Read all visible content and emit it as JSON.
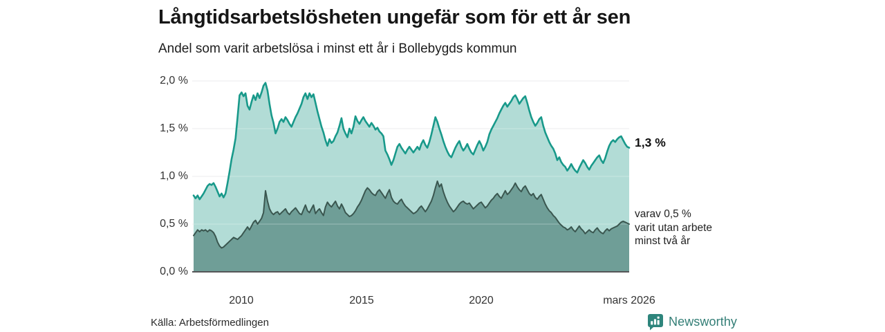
{
  "header": {
    "title": "Långtidsarbetslösheten ungefär som för ett år sen",
    "subtitle": "Andel som varit arbetslösa i minst ett år i Bollebygds kommun"
  },
  "chart_data": {
    "type": "area",
    "title": "Långtidsarbetslösheten ungefär som för ett år sen",
    "subtitle": "Andel som varit arbetslösa i minst ett år i Bollebygds kommun",
    "unit": "%",
    "grid": true,
    "ylim": [
      0,
      2.0
    ],
    "y_axis": {
      "tick_values": [
        0.0,
        0.5,
        1.0,
        1.5,
        2.0
      ],
      "tick_labels": [
        "0,0 %",
        "0,5 %",
        "1,0 %",
        "1,5 %",
        "2,0 %"
      ]
    },
    "x_axis": {
      "start_year": 2008.0,
      "step": "monthly",
      "end": "mars 2026",
      "tick_years": [
        2010,
        2015,
        2020,
        2026.17
      ],
      "tick_labels": [
        "2010",
        "2015",
        "2020",
        "mars 2026"
      ]
    },
    "series": [
      {
        "name": "Andel som varit arbetslösa i minst ett år",
        "end_value": 1.3,
        "end_label": "1,3 %",
        "line_color": "#18998a",
        "fill_color": "#b2dcd6",
        "values": [
          0.8,
          0.77,
          0.8,
          0.76,
          0.79,
          0.82,
          0.86,
          0.9,
          0.92,
          0.91,
          0.93,
          0.89,
          0.84,
          0.79,
          0.82,
          0.78,
          0.82,
          0.93,
          1.05,
          1.18,
          1.28,
          1.4,
          1.62,
          1.85,
          1.88,
          1.84,
          1.87,
          1.74,
          1.7,
          1.78,
          1.85,
          1.8,
          1.87,
          1.82,
          1.88,
          1.95,
          1.98,
          1.9,
          1.76,
          1.64,
          1.56,
          1.45,
          1.5,
          1.57,
          1.6,
          1.57,
          1.62,
          1.59,
          1.55,
          1.52,
          1.57,
          1.62,
          1.66,
          1.71,
          1.76,
          1.83,
          1.87,
          1.81,
          1.87,
          1.83,
          1.86,
          1.77,
          1.68,
          1.6,
          1.52,
          1.46,
          1.38,
          1.32,
          1.39,
          1.35,
          1.37,
          1.42,
          1.46,
          1.53,
          1.61,
          1.5,
          1.45,
          1.41,
          1.5,
          1.45,
          1.52,
          1.63,
          1.58,
          1.55,
          1.59,
          1.62,
          1.58,
          1.55,
          1.52,
          1.56,
          1.53,
          1.49,
          1.51,
          1.47,
          1.45,
          1.42,
          1.27,
          1.23,
          1.18,
          1.12,
          1.17,
          1.24,
          1.31,
          1.34,
          1.3,
          1.27,
          1.24,
          1.28,
          1.31,
          1.28,
          1.25,
          1.28,
          1.31,
          1.28,
          1.34,
          1.38,
          1.33,
          1.3,
          1.36,
          1.44,
          1.53,
          1.62,
          1.57,
          1.5,
          1.44,
          1.37,
          1.31,
          1.26,
          1.22,
          1.2,
          1.25,
          1.3,
          1.34,
          1.37,
          1.31,
          1.27,
          1.3,
          1.34,
          1.29,
          1.25,
          1.23,
          1.28,
          1.33,
          1.37,
          1.33,
          1.27,
          1.31,
          1.36,
          1.44,
          1.49,
          1.53,
          1.57,
          1.61,
          1.66,
          1.7,
          1.74,
          1.77,
          1.73,
          1.76,
          1.79,
          1.83,
          1.85,
          1.81,
          1.76,
          1.79,
          1.82,
          1.84,
          1.77,
          1.69,
          1.62,
          1.57,
          1.53,
          1.56,
          1.6,
          1.62,
          1.53,
          1.46,
          1.41,
          1.36,
          1.32,
          1.29,
          1.24,
          1.17,
          1.2,
          1.15,
          1.12,
          1.1,
          1.06,
          1.09,
          1.13,
          1.09,
          1.06,
          1.04,
          1.09,
          1.13,
          1.17,
          1.14,
          1.1,
          1.07,
          1.11,
          1.14,
          1.17,
          1.2,
          1.22,
          1.17,
          1.14,
          1.19,
          1.26,
          1.32,
          1.36,
          1.38,
          1.36,
          1.39,
          1.41,
          1.42,
          1.38,
          1.34,
          1.31,
          1.3
        ]
      },
      {
        "name": "varav varit utan arbete minst två år",
        "end_value": 0.5,
        "end_label": "varav 0,5 % varit utan arbete minst två år",
        "line_color": "#3a564f",
        "fill_color": "#6f9e97",
        "values": [
          0.38,
          0.41,
          0.44,
          0.42,
          0.44,
          0.43,
          0.44,
          0.42,
          0.44,
          0.43,
          0.41,
          0.37,
          0.31,
          0.27,
          0.25,
          0.26,
          0.28,
          0.3,
          0.32,
          0.34,
          0.36,
          0.35,
          0.34,
          0.36,
          0.38,
          0.41,
          0.44,
          0.47,
          0.44,
          0.48,
          0.52,
          0.54,
          0.5,
          0.53,
          0.56,
          0.62,
          0.85,
          0.74,
          0.66,
          0.62,
          0.6,
          0.62,
          0.63,
          0.6,
          0.62,
          0.64,
          0.66,
          0.62,
          0.6,
          0.63,
          0.65,
          0.67,
          0.64,
          0.61,
          0.6,
          0.65,
          0.7,
          0.64,
          0.62,
          0.66,
          0.7,
          0.61,
          0.64,
          0.66,
          0.62,
          0.59,
          0.68,
          0.73,
          0.7,
          0.68,
          0.71,
          0.74,
          0.69,
          0.66,
          0.71,
          0.67,
          0.62,
          0.6,
          0.58,
          0.59,
          0.61,
          0.64,
          0.68,
          0.71,
          0.75,
          0.8,
          0.85,
          0.88,
          0.86,
          0.83,
          0.81,
          0.8,
          0.84,
          0.86,
          0.83,
          0.8,
          0.77,
          0.82,
          0.86,
          0.78,
          0.74,
          0.72,
          0.71,
          0.74,
          0.76,
          0.72,
          0.69,
          0.67,
          0.65,
          0.63,
          0.61,
          0.62,
          0.64,
          0.67,
          0.69,
          0.66,
          0.63,
          0.66,
          0.7,
          0.74,
          0.8,
          0.88,
          0.95,
          0.89,
          0.92,
          0.84,
          0.78,
          0.73,
          0.69,
          0.66,
          0.63,
          0.65,
          0.68,
          0.71,
          0.73,
          0.74,
          0.72,
          0.71,
          0.72,
          0.69,
          0.66,
          0.68,
          0.7,
          0.72,
          0.73,
          0.7,
          0.67,
          0.69,
          0.72,
          0.75,
          0.77,
          0.8,
          0.82,
          0.79,
          0.77,
          0.81,
          0.85,
          0.81,
          0.83,
          0.86,
          0.89,
          0.93,
          0.89,
          0.86,
          0.84,
          0.88,
          0.9,
          0.86,
          0.82,
          0.8,
          0.82,
          0.78,
          0.76,
          0.79,
          0.81,
          0.76,
          0.71,
          0.67,
          0.64,
          0.62,
          0.59,
          0.57,
          0.54,
          0.51,
          0.49,
          0.47,
          0.46,
          0.44,
          0.45,
          0.47,
          0.44,
          0.42,
          0.45,
          0.48,
          0.45,
          0.43,
          0.4,
          0.42,
          0.44,
          0.42,
          0.41,
          0.44,
          0.46,
          0.43,
          0.41,
          0.4,
          0.43,
          0.45,
          0.43,
          0.45,
          0.46,
          0.47,
          0.48,
          0.5,
          0.52,
          0.53,
          0.52,
          0.51,
          0.5
        ]
      }
    ],
    "annotations": {
      "series1_end": "1,3 %",
      "series2_end_line1": "varav 0,5 %",
      "series2_end_line2": "varit utan arbete",
      "series2_end_line3": "minst två år"
    }
  },
  "footer": {
    "source": "Källa: Arbetsförmedlingen",
    "brand": "Newsworthy"
  },
  "colors": {
    "line_total": "#18998a",
    "fill_total": "#b2dcd6",
    "line_two_years": "#3a564f",
    "fill_two_years": "#6f9e97",
    "gridline": "#e2e2e6",
    "baseline": "#555558",
    "brand_teal": "#2e857c",
    "text": "#1b1b1b"
  }
}
